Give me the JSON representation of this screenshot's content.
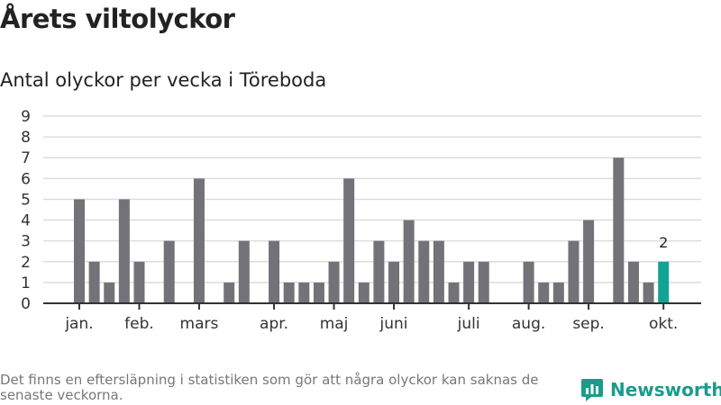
{
  "header": {
    "title": "Årets viltolyckor",
    "subtitle": "Antal olyckor per vecka i Töreboda"
  },
  "footer": {
    "note": "Det finns en eftersläpning i statistiken som gör att några olyckor kan saknas de senaste veckorna.",
    "brand": "Newsworthy"
  },
  "colors": {
    "bar": "#737278",
    "highlight": "#12a395",
    "grid": "#dddddd",
    "axis": "#333333"
  },
  "chart_data": {
    "type": "bar",
    "title": "Antal olyckor per vecka i Töreboda",
    "xlabel": "",
    "ylabel": "",
    "ylim": [
      0,
      9
    ],
    "yticks": [
      "0",
      "1",
      "2",
      "3",
      "4",
      "5",
      "6",
      "7",
      "8",
      "9"
    ],
    "weeks": [
      1,
      2,
      3,
      4,
      5,
      6,
      7,
      8,
      9,
      10,
      11,
      12,
      13,
      14,
      15,
      16,
      17,
      18,
      19,
      20,
      21,
      22,
      23,
      24,
      25,
      26,
      27,
      28,
      29,
      30,
      31,
      32,
      33,
      34,
      35,
      36,
      37,
      38,
      39,
      40
    ],
    "values": [
      5,
      2,
      1,
      5,
      2,
      0,
      3,
      0,
      6,
      0,
      1,
      3,
      0,
      3,
      1,
      1,
      1,
      2,
      6,
      1,
      3,
      2,
      4,
      3,
      3,
      1,
      2,
      2,
      0,
      0,
      2,
      1,
      1,
      3,
      4,
      0,
      7,
      2,
      1,
      2
    ],
    "month_ticks": [
      {
        "label": "jan.",
        "week": 1
      },
      {
        "label": "feb.",
        "week": 5
      },
      {
        "label": "mars",
        "week": 9
      },
      {
        "label": "apr.",
        "week": 14
      },
      {
        "label": "maj",
        "week": 18
      },
      {
        "label": "juni",
        "week": 22
      },
      {
        "label": "juli",
        "week": 27
      },
      {
        "label": "aug.",
        "week": 31
      },
      {
        "label": "sep.",
        "week": 35
      },
      {
        "label": "okt.",
        "week": 40
      }
    ],
    "highlight_week": 40,
    "highlight_label": "2",
    "grid": true
  }
}
